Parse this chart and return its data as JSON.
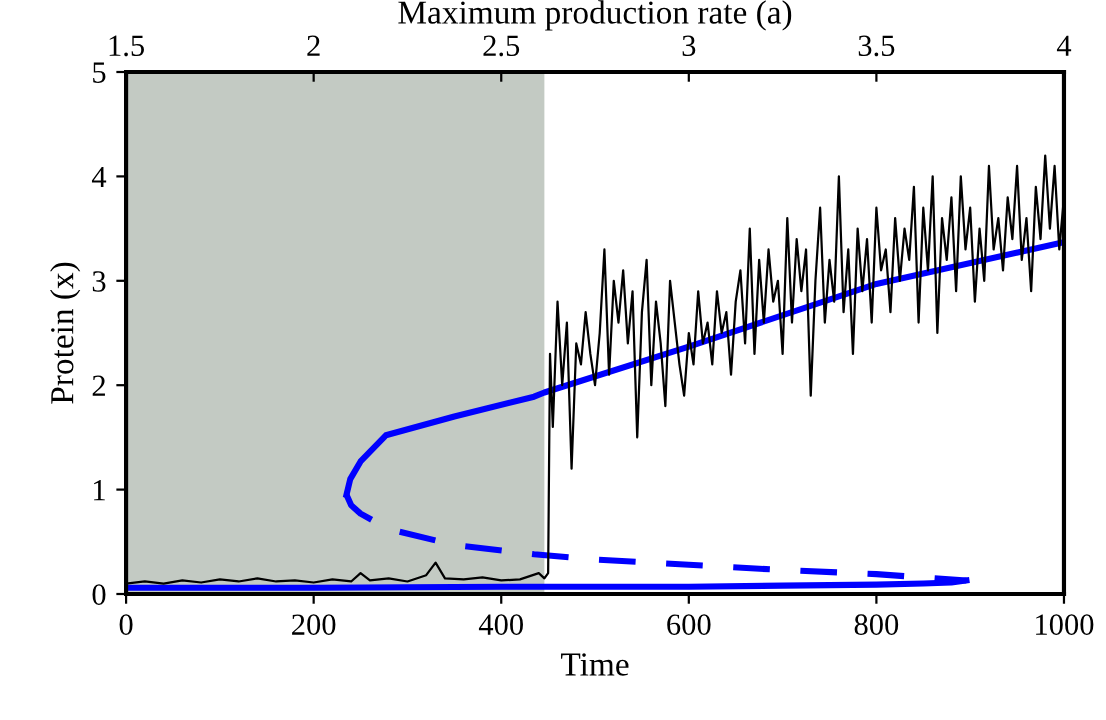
{
  "chart_data": {
    "type": "line",
    "xlabel": "Time",
    "ylabel": "Protein (x)",
    "x2label": "Maximum production rate (a)",
    "xlim": [
      0,
      1000
    ],
    "xticks": [
      0,
      200,
      400,
      600,
      800,
      1000
    ],
    "x2lim": [
      1.5,
      4
    ],
    "x2ticks": [
      1.5,
      2,
      2.5,
      3,
      3.5,
      4
    ],
    "ylim": [
      0,
      5
    ],
    "yticks": [
      0,
      1,
      2,
      3,
      4,
      5
    ],
    "grid": false,
    "legend": false,
    "marker": "none",
    "bands": [
      {
        "axis": "x",
        "from": 0,
        "to": 446,
        "color": "#c3cac3"
      }
    ],
    "series": [
      {
        "color": "#0000ff",
        "line_style": "solid",
        "x": [
          0,
          200,
          400,
          600,
          700,
          800,
          850,
          880,
          896
        ],
        "values": [
          0.06,
          0.06,
          0.07,
          0.07,
          0.08,
          0.09,
          0.1,
          0.11,
          0.13
        ]
      },
      {
        "color": "#0000ff",
        "line_style": "dashed",
        "x": [
          235,
          240,
          250,
          264,
          290,
          350,
          435,
          500,
          600,
          700,
          800,
          896
        ],
        "values": [
          0.95,
          0.85,
          0.77,
          0.7,
          0.6,
          0.47,
          0.38,
          0.33,
          0.28,
          0.23,
          0.19,
          0.13
        ]
      },
      {
        "color": "#0000ff",
        "line_style": "solid",
        "x": [
          235,
          239,
          250,
          277,
          350,
          435,
          446,
          600,
          800,
          1000
        ],
        "values": [
          0.95,
          1.1,
          1.27,
          1.52,
          1.7,
          1.89,
          1.93,
          2.37,
          2.97,
          3.37
        ]
      },
      {
        "color": "#000000",
        "line_style": "solid",
        "x": [
          0,
          20,
          40,
          60,
          80,
          100,
          120,
          140,
          160,
          180,
          200,
          220,
          240,
          250,
          260,
          280,
          300,
          320,
          330,
          340,
          360,
          380,
          400,
          420,
          440,
          446,
          450,
          452,
          455,
          460,
          465,
          470,
          475,
          480,
          485,
          490,
          495,
          500,
          505,
          510,
          515,
          520,
          525,
          530,
          535,
          540,
          545,
          550,
          555,
          560,
          565,
          570,
          575,
          580,
          585,
          590,
          595,
          600,
          605,
          610,
          615,
          620,
          625,
          630,
          635,
          640,
          645,
          650,
          655,
          660,
          665,
          670,
          675,
          680,
          685,
          690,
          695,
          700,
          705,
          710,
          715,
          720,
          725,
          730,
          735,
          740,
          745,
          750,
          755,
          760,
          765,
          770,
          775,
          780,
          785,
          790,
          795,
          800,
          805,
          810,
          815,
          820,
          825,
          830,
          835,
          840,
          845,
          850,
          855,
          860,
          865,
          870,
          875,
          880,
          885,
          890,
          895,
          900,
          905,
          910,
          915,
          920,
          925,
          930,
          935,
          940,
          945,
          950,
          955,
          960,
          965,
          970,
          975,
          980,
          985,
          990,
          995,
          1000
        ],
        "values": [
          0.1,
          0.12,
          0.1,
          0.13,
          0.11,
          0.14,
          0.12,
          0.15,
          0.12,
          0.13,
          0.11,
          0.14,
          0.12,
          0.2,
          0.13,
          0.15,
          0.12,
          0.18,
          0.3,
          0.15,
          0.14,
          0.16,
          0.13,
          0.14,
          0.2,
          0.15,
          0.2,
          2.3,
          1.6,
          2.8,
          2.0,
          2.6,
          1.2,
          2.4,
          2.2,
          2.7,
          2.3,
          2.0,
          2.5,
          3.3,
          2.1,
          3.0,
          2.6,
          3.1,
          2.4,
          2.9,
          1.5,
          2.7,
          3.2,
          2.0,
          2.8,
          2.4,
          1.8,
          3.0,
          2.6,
          2.2,
          1.9,
          2.5,
          2.2,
          2.9,
          2.4,
          2.6,
          2.2,
          2.9,
          2.5,
          2.7,
          2.1,
          2.8,
          3.1,
          2.4,
          3.5,
          2.3,
          3.2,
          2.6,
          3.3,
          2.8,
          3.0,
          2.3,
          3.6,
          2.6,
          3.4,
          2.9,
          3.3,
          1.9,
          3.0,
          3.7,
          2.6,
          3.2,
          2.8,
          4.0,
          2.7,
          3.3,
          2.3,
          3.5,
          2.9,
          3.4,
          2.6,
          3.7,
          3.1,
          3.3,
          2.7,
          3.6,
          3.0,
          3.5,
          3.2,
          3.9,
          2.6,
          3.7,
          3.1,
          4.0,
          2.5,
          3.6,
          3.2,
          3.8,
          2.9,
          4.0,
          3.3,
          3.7,
          2.8,
          3.5,
          3.0,
          4.1,
          3.3,
          3.6,
          3.1,
          3.8,
          3.4,
          4.1,
          3.2,
          3.6,
          2.9,
          3.9,
          3.4,
          4.2,
          3.5,
          4.1,
          3.3,
          3.8
        ]
      }
    ]
  }
}
